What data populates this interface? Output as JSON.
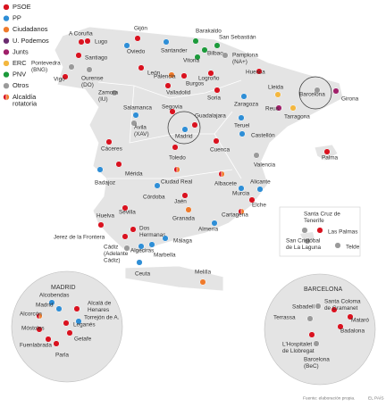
{
  "legend": [
    {
      "label": [
        "PSOE"
      ],
      "color": "#d9121f"
    },
    {
      "label": [
        "PP"
      ],
      "color": "#2e8ed6"
    },
    {
      "label": [
        "Ciudadanos"
      ],
      "color": "#ef7a2b"
    },
    {
      "label": [
        "U. Podemos"
      ],
      "color": "#6b2c70"
    },
    {
      "label": [
        "Junts"
      ],
      "color": "#a0206a"
    },
    {
      "label": [
        "ERC"
      ],
      "color": "#f3b73f"
    },
    {
      "label": [
        "PNV"
      ],
      "color": "#1c9a3b"
    },
    {
      "label": [
        "Otros"
      ],
      "color": "#9a9a9a"
    },
    {
      "label": [
        "Alcaldía",
        "rotatoria"
      ],
      "colors": [
        "#d9121f",
        "#ef7a2b"
      ]
    }
  ],
  "cities": [
    {
      "label": [
        "A Coruña"
      ],
      "party": 0
    },
    {
      "label": [
        "Lugo"
      ],
      "party": 0
    },
    {
      "label": [
        "Santiago"
      ],
      "party": 0
    },
    {
      "label": [
        "Pontevedra",
        "(BNG)"
      ],
      "party": 7
    },
    {
      "label": [
        "Vigo"
      ],
      "party": 0
    },
    {
      "label": [
        "Ourense",
        "(DO)"
      ],
      "party": 7
    },
    {
      "label": [
        "Gijón"
      ],
      "party": 0
    },
    {
      "label": [
        "Oviedo"
      ],
      "party": 1
    },
    {
      "label": [
        "Santander"
      ],
      "party": 1
    },
    {
      "label": [
        "Barakaldo"
      ],
      "party": 6
    },
    {
      "label": [
        "San Sebastián"
      ],
      "party": 6
    },
    {
      "label": [
        "Bilbao"
      ],
      "party": 6
    },
    {
      "label": [
        "Vitoria"
      ],
      "party": 6
    },
    {
      "label": [
        "Pamplona",
        "(NA+)"
      ],
      "party": 7
    },
    {
      "label": [
        "León"
      ],
      "party": 0
    },
    {
      "label": [
        "Palencia"
      ],
      "party": 2
    },
    {
      "label": [
        "Burgos"
      ],
      "party": 0
    },
    {
      "label": [
        "Logroño"
      ],
      "party": 0
    },
    {
      "label": [
        "Huesca"
      ],
      "party": 0
    },
    {
      "label": [
        "Girona"
      ],
      "party": 4
    },
    {
      "label": [
        "Zamora",
        "(IU)"
      ],
      "party": 7
    },
    {
      "label": [
        "Valladolid"
      ],
      "party": 0
    },
    {
      "label": [
        "Soria"
      ],
      "party": 0
    },
    {
      "label": [
        "Lleida"
      ],
      "party": 5
    },
    {
      "label": [
        "Zaragoza"
      ],
      "party": 1
    },
    {
      "label": [
        "Reus"
      ],
      "party": 4
    },
    {
      "label": [
        "Tarragona"
      ],
      "party": 5
    },
    {
      "label": [
        "Barcelona"
      ],
      "party": 7
    },
    {
      "label": [
        "Salamanca"
      ],
      "party": 1
    },
    {
      "label": [
        "Segovia"
      ],
      "party": 0
    },
    {
      "label": [
        "Guadalajara"
      ],
      "party": 0
    },
    {
      "label": [
        "Ávila",
        "(XAV)"
      ],
      "party": 7
    },
    {
      "label": [
        "Madrid"
      ],
      "party": 1
    },
    {
      "label": [
        "Teruel"
      ],
      "party": 1
    },
    {
      "label": [
        "Castellón"
      ],
      "party": 1
    },
    {
      "label": [
        "Cuenca"
      ],
      "party": 0
    },
    {
      "label": [
        "Toledo"
      ],
      "party": 0
    },
    {
      "label": [
        "Valencia"
      ],
      "party": 7
    },
    {
      "label": [
        "Palma"
      ],
      "party": 0
    },
    {
      "label": [
        "Cáceres"
      ],
      "party": 0
    },
    {
      "label": [
        "Mérida"
      ],
      "party": 0
    },
    {
      "label": [
        "Badajoz"
      ],
      "party": 1
    },
    {
      "label": [
        "Ciudad Real"
      ],
      "party": 8
    },
    {
      "label": [
        "Albacete"
      ],
      "party": 8
    },
    {
      "label": [
        "Córdoba"
      ],
      "party": 1
    },
    {
      "label": [
        "Murcia"
      ],
      "party": 1
    },
    {
      "label": [
        "Alicante"
      ],
      "party": 1
    },
    {
      "label": [
        "Jaén"
      ],
      "party": 0
    },
    {
      "label": [
        "Elche"
      ],
      "party": 0
    },
    {
      "label": [
        "Sevilla"
      ],
      "party": 0
    },
    {
      "label": [
        "Granada"
      ],
      "party": 2
    },
    {
      "label": [
        "Almería"
      ],
      "party": 1
    },
    {
      "label": [
        "Cartagena"
      ],
      "party": 8
    },
    {
      "label": [
        "Huelva"
      ],
      "party": 0
    },
    {
      "label": [
        "Dos",
        "Hermanas"
      ],
      "party": 0
    },
    {
      "label": [
        "Jerez de la Frontera"
      ],
      "party": 0
    },
    {
      "label": [
        "Málaga"
      ],
      "party": 1
    },
    {
      "label": [
        "Cádiz",
        "(Adelante",
        "Cádiz)"
      ],
      "party": 7
    },
    {
      "label": [
        "Algeciras"
      ],
      "party": 1
    },
    {
      "label": [
        "Marbella"
      ],
      "party": 1
    },
    {
      "label": [
        "Ceuta"
      ],
      "party": 1
    },
    {
      "label": [
        "Melilla"
      ],
      "party": 2
    },
    {
      "label": [
        "Santa Cruz de",
        "Tenerife"
      ],
      "party": 7
    },
    {
      "label": [
        "Las Palmas"
      ],
      "party": 0
    },
    {
      "label": [
        "San Cristóbal",
        "de La Laguna"
      ],
      "party": 7
    },
    {
      "label": [
        "Telde"
      ],
      "party": 7
    }
  ],
  "madrid": {
    "title": "MADRID",
    "cities": [
      {
        "label": [
          "Alcobendas"
        ],
        "party": 1
      },
      {
        "label": [
          "Madrid"
        ],
        "party": 1
      },
      {
        "label": [
          "Alcalá de",
          "Henares"
        ],
        "party": 0
      },
      {
        "label": [
          "Alcorcón"
        ],
        "party": 8
      },
      {
        "label": [
          "Torrejón de A."
        ],
        "party": 1
      },
      {
        "label": [
          "Leganés"
        ],
        "party": 0
      },
      {
        "label": [
          "Móstoles"
        ],
        "party": 0
      },
      {
        "label": [
          "Getafe"
        ],
        "party": 0
      },
      {
        "label": [
          "Fuenlabrada"
        ],
        "party": 0
      },
      {
        "label": [
          "Parla"
        ],
        "party": 0
      }
    ]
  },
  "barcelona": {
    "title": "BARCELONA",
    "cities": [
      {
        "label": [
          "Sabadell"
        ],
        "party": 7
      },
      {
        "label": [
          "Santa Coloma",
          "de Gramanet"
        ],
        "party": 0
      },
      {
        "label": [
          "Terrassa"
        ],
        "party": 7
      },
      {
        "label": [
          "Mataró"
        ],
        "party": 0
      },
      {
        "label": [
          "Badalona"
        ],
        "party": 0
      },
      {
        "label": [
          "L'Hospitalet",
          "de Llobregat"
        ],
        "party": 0
      },
      {
        "label": [
          "Barcelona",
          "(BeC)"
        ],
        "party": 7
      }
    ]
  },
  "source": "Fuente: elaboración propia.",
  "publisher": "EL PAÍS"
}
